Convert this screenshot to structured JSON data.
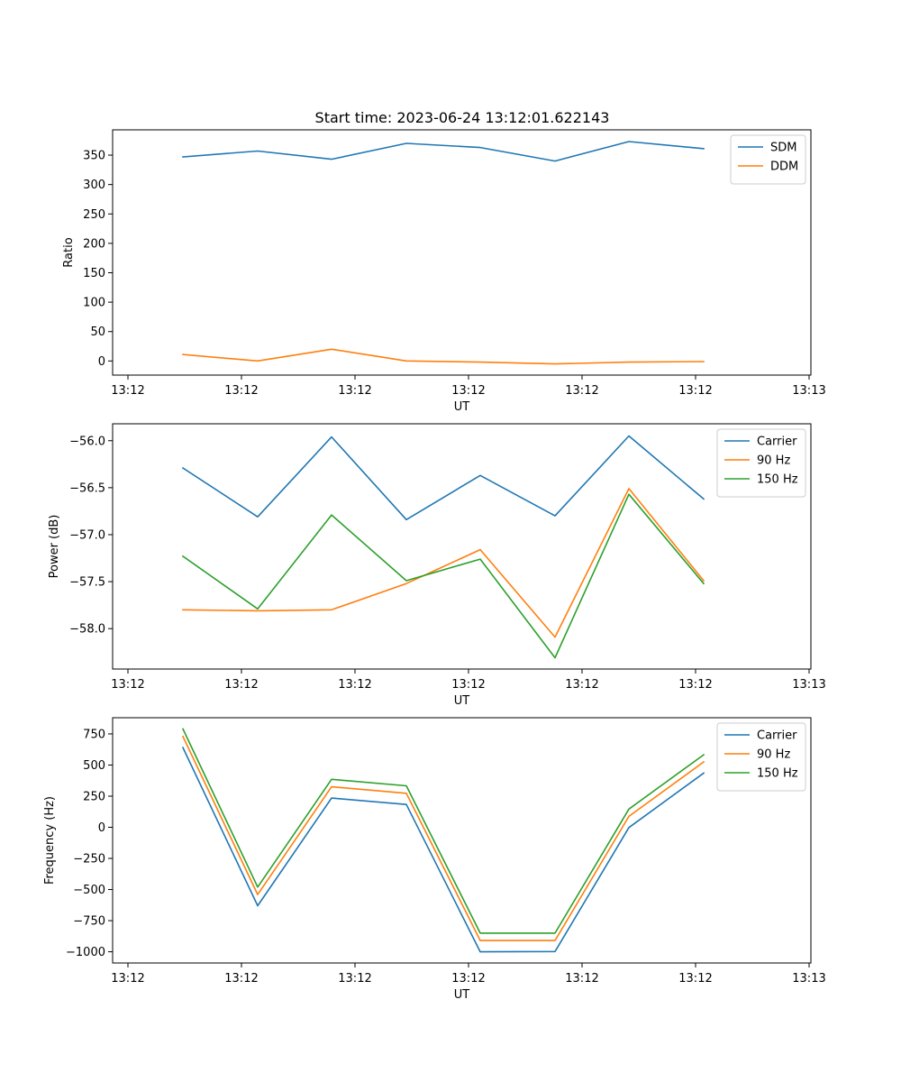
{
  "title": "Start time: 2023-06-24 13:12:01.622143",
  "colors": {
    "blue": "#1f77b4",
    "orange": "#ff7f0e",
    "green": "#2ca02c"
  },
  "chart_data": [
    {
      "type": "line",
      "title": "Start time: 2023-06-24 13:12:01.622143",
      "xlabel": "UT",
      "ylabel": "Ratio",
      "x_tick_labels": [
        "13:12",
        "13:12",
        "13:12",
        "13:12",
        "13:12",
        "13:12",
        "13:13"
      ],
      "y_ticks": [
        0,
        50,
        100,
        150,
        200,
        250,
        300,
        350
      ],
      "ylim": [
        -24,
        393
      ],
      "legend": "top-right",
      "series": [
        {
          "name": "SDM",
          "color": "#1f77b4",
          "values": [
            347,
            357,
            343,
            370,
            363,
            340,
            373,
            361
          ]
        },
        {
          "name": "DDM",
          "color": "#ff7f0e",
          "values": [
            11,
            0,
            20,
            0,
            -2,
            -5,
            -2,
            -1
          ]
        }
      ]
    },
    {
      "type": "line",
      "xlabel": "UT",
      "ylabel": "Power (dB)",
      "x_tick_labels": [
        "13:12",
        "13:12",
        "13:12",
        "13:12",
        "13:12",
        "13:12",
        "13:13"
      ],
      "y_ticks": [
        -56.0,
        -56.5,
        -57.0,
        -57.5,
        -58.0
      ],
      "y_tick_labels": [
        "−56.0",
        "−56.5",
        "−57.0",
        "−57.5",
        "−58.0"
      ],
      "ylim": [
        -58.43,
        -55.82
      ],
      "legend": "top-right",
      "series": [
        {
          "name": "Carrier",
          "color": "#1f77b4",
          "values": [
            -56.29,
            -56.81,
            -55.96,
            -56.84,
            -56.37,
            -56.8,
            -55.95,
            -56.62
          ]
        },
        {
          "name": "90 Hz",
          "color": "#ff7f0e",
          "values": [
            -57.8,
            -57.81,
            -57.8,
            -57.52,
            -57.16,
            -58.09,
            -56.51,
            -57.49
          ]
        },
        {
          "name": "150 Hz",
          "color": "#2ca02c",
          "values": [
            -57.23,
            -57.79,
            -56.79,
            -57.49,
            -57.26,
            -58.31,
            -56.57,
            -57.52
          ]
        }
      ]
    },
    {
      "type": "line",
      "xlabel": "UT",
      "ylabel": "Frequency (Hz)",
      "x_tick_labels": [
        "13:12",
        "13:12",
        "13:12",
        "13:12",
        "13:12",
        "13:12",
        "13:13"
      ],
      "y_ticks": [
        750,
        500,
        250,
        0,
        -250,
        -500,
        -750,
        -1000
      ],
      "y_tick_labels": [
        "750",
        "500",
        "250",
        "0",
        "−250",
        "−500",
        "−750",
        "−1000"
      ],
      "ylim": [
        -1090,
        880
      ],
      "legend": "top-right",
      "series": [
        {
          "name": "Carrier",
          "color": "#1f77b4",
          "values": [
            640,
            -630,
            235,
            183,
            -1000,
            -998,
            -2,
            435
          ]
        },
        {
          "name": "90 Hz",
          "color": "#ff7f0e",
          "values": [
            730,
            -540,
            325,
            273,
            -910,
            -910,
            88,
            525
          ]
        },
        {
          "name": "150 Hz",
          "color": "#2ca02c",
          "values": [
            790,
            -480,
            385,
            333,
            -850,
            -850,
            146,
            582
          ]
        }
      ]
    }
  ]
}
